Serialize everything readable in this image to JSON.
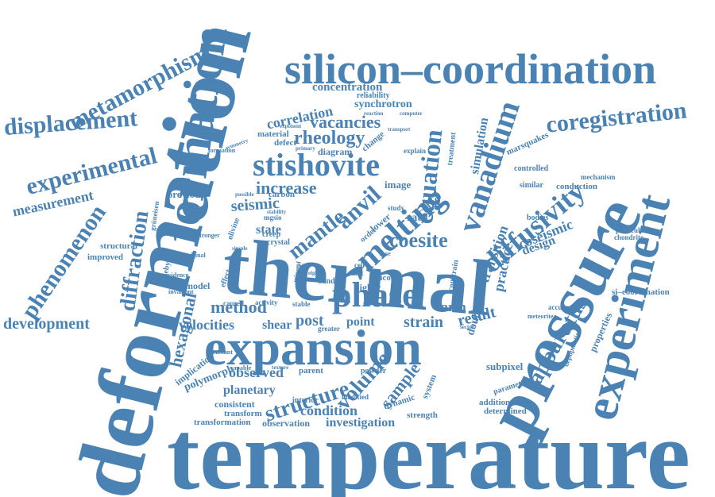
{
  "color": "#4a82b4",
  "words": [
    "temperature",
    "deformation",
    "thermal",
    "pressure",
    "expansion",
    "experiment",
    "silicon–coordination",
    "phase",
    "formation",
    "stishovite",
    "melting",
    "vanadium",
    "diffusivity",
    "coregistration",
    "metamorphism",
    "displacement",
    "experimental",
    "measurement",
    "phenomenon",
    "development",
    "diffraction",
    "hexagonal",
    "structure",
    "volume",
    "apparatus",
    "equation",
    "anvil",
    "mantle",
    "coesite",
    "increase",
    "seismic",
    "method",
    "rheology",
    "vacancies",
    "correlation",
    "concentration",
    "synchrotron",
    "reliability",
    "simulation",
    "coseismic",
    "transition",
    "design",
    "practice",
    "result",
    "velocities",
    "shear",
    "post",
    "point",
    "strain",
    "earth",
    "sample",
    "observed",
    "condition",
    "investigation",
    "observation",
    "transformation",
    "transform",
    "consistent",
    "planetary",
    "polymorph",
    "implication",
    "state",
    "carbon",
    "previous",
    "structural",
    "improved",
    "particular",
    "chondrite",
    "si–coordination",
    "subpixel",
    "strength",
    "dynamic",
    "system",
    "properties",
    "depopulation",
    "bodies",
    "mechanism",
    "conduction",
    "similar",
    "controlled",
    "marsquakes",
    "treatment",
    "diagram",
    "defect",
    "material",
    "change",
    "image",
    "model",
    "debye",
    "original",
    "evidence",
    "invariant",
    "constant",
    "parent",
    "powder",
    "interior",
    "modified",
    "accuracy",
    "meteorite",
    "additional",
    "determined",
    "parameter",
    "caused",
    "activity",
    "stable",
    "greater",
    "double",
    "constrain",
    "higher",
    "silicon",
    "crystal",
    "creep",
    "olivine",
    "stronger",
    "cubic",
    "rate",
    "unit",
    "cell",
    "face",
    "study",
    "lower",
    "order",
    "band",
    "grüneisen",
    "mgsio",
    "effect",
    "sector",
    "capable",
    "texture",
    "mineral",
    "formation",
    "explain",
    "computer",
    "transport",
    "reaction",
    "exponent",
    "primary",
    "symmetry",
    "possible",
    "stability",
    "simple",
    "prime",
    "eight"
  ]
}
